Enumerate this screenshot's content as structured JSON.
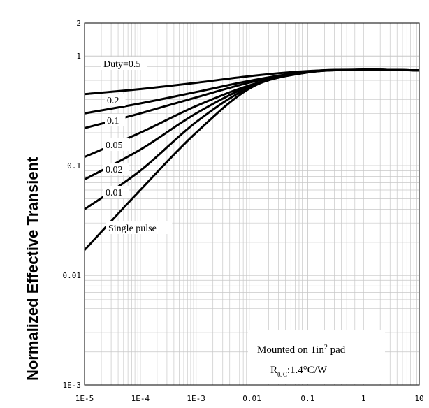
{
  "chart_data": {
    "type": "line",
    "title": "",
    "xlabel": "",
    "ylabel": "Normalized Effective Transient",
    "x_scale": "log",
    "y_scale": "log",
    "xlim": [
      1e-05,
      10
    ],
    "ylim": [
      0.001,
      2
    ],
    "grid": true,
    "x_ticks": [
      {
        "value": 1e-05,
        "label": "1E-5"
      },
      {
        "value": 0.0001,
        "label": "1E-4"
      },
      {
        "value": 0.001,
        "label": "1E-3"
      },
      {
        "value": 0.01,
        "label": "0.01"
      },
      {
        "value": 0.1,
        "label": "0.1"
      },
      {
        "value": 1,
        "label": "1"
      },
      {
        "value": 10,
        "label": "10"
      }
    ],
    "y_ticks": [
      {
        "value": 0.001,
        "label": "1E-3"
      },
      {
        "value": 0.01,
        "label": "0.01"
      },
      {
        "value": 0.1,
        "label": "0.1"
      },
      {
        "value": 1,
        "label": "1"
      },
      {
        "value": 2,
        "label": "2"
      }
    ],
    "series": [
      {
        "name": "Duty=0.5",
        "x": [
          1e-05,
          0.0001,
          0.001,
          0.01,
          0.1,
          1,
          10
        ],
        "y": [
          0.45,
          0.5,
          0.57,
          0.66,
          0.73,
          0.75,
          0.74
        ]
      },
      {
        "name": "0.2",
        "x": [
          1e-05,
          0.0001,
          0.001,
          0.01,
          0.1,
          1,
          10
        ],
        "y": [
          0.3,
          0.37,
          0.47,
          0.6,
          0.72,
          0.75,
          0.74
        ]
      },
      {
        "name": "0.1",
        "x": [
          1e-05,
          0.0001,
          0.001,
          0.01,
          0.1,
          1,
          10
        ],
        "y": [
          0.22,
          0.3,
          0.42,
          0.58,
          0.72,
          0.75,
          0.74
        ]
      },
      {
        "name": "0.05",
        "x": [
          1e-05,
          0.0001,
          0.001,
          0.01,
          0.1,
          1,
          10
        ],
        "y": [
          0.12,
          0.2,
          0.35,
          0.55,
          0.72,
          0.75,
          0.74
        ]
      },
      {
        "name": "0.02",
        "x": [
          1e-05,
          0.0001,
          0.001,
          0.01,
          0.1,
          1,
          10
        ],
        "y": [
          0.075,
          0.14,
          0.3,
          0.54,
          0.71,
          0.75,
          0.74
        ]
      },
      {
        "name": "0.01",
        "x": [
          1e-05,
          0.0001,
          0.001,
          0.01,
          0.1,
          1,
          10
        ],
        "y": [
          0.04,
          0.09,
          0.25,
          0.53,
          0.71,
          0.75,
          0.74
        ]
      },
      {
        "name": "Single pulse",
        "x": [
          1e-05,
          0.0001,
          0.001,
          0.01,
          0.1,
          1,
          10
        ],
        "y": [
          0.017,
          0.06,
          0.2,
          0.52,
          0.71,
          0.75,
          0.74
        ]
      }
    ],
    "annotation": {
      "line1_prefix": "Mounted on 1in",
      "line1_sup": "2",
      "line1_suffix": " pad",
      "line2_main": "R",
      "line2_sub": "θJC",
      "line2_suffix": ":1.4°C/W"
    },
    "colors": {
      "curve": "#000000",
      "grid": "#c8c8c8",
      "axis": "#000000"
    }
  }
}
